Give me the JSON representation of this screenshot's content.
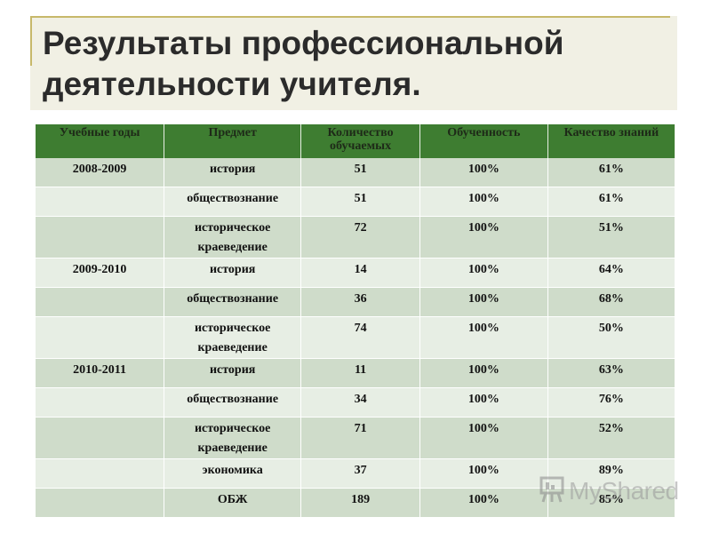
{
  "title": "Результаты профессиональной деятельности учителя.",
  "table": {
    "headers": [
      "Учебные годы",
      "Предмет",
      "Количество обучаемых",
      "Обученность",
      "Качество знаний"
    ],
    "rows": [
      {
        "year": "2008-2009",
        "subject": "история",
        "count": "51",
        "progress": "100%",
        "quality": "61%"
      },
      {
        "year": "",
        "subject": "обществознание",
        "count": "51",
        "progress": "100%",
        "quality": "61%"
      },
      {
        "year": "",
        "subject": "историческое краеведение",
        "count": "72",
        "progress": "100%",
        "quality": "51%"
      },
      {
        "year": "2009-2010",
        "subject": "история",
        "count": "14",
        "progress": "100%",
        "quality": "64%"
      },
      {
        "year": "",
        "subject": "обществознание",
        "count": "36",
        "progress": "100%",
        "quality": "68%"
      },
      {
        "year": "",
        "subject": "историческое краеведение",
        "count": "74",
        "progress": "100%",
        "quality": "50%"
      },
      {
        "year": "2010-2011",
        "subject": "история",
        "count": "11",
        "progress": "100%",
        "quality": "63%"
      },
      {
        "year": "",
        "subject": "обществознание",
        "count": "34",
        "progress": "100%",
        "quality": "76%"
      },
      {
        "year": "",
        "subject": "историческое краеведение",
        "count": "71",
        "progress": "100%",
        "quality": "52%"
      },
      {
        "year": "",
        "subject": "экономика",
        "count": "37",
        "progress": "100%",
        "quality": "89%"
      },
      {
        "year": "",
        "subject": "ОБЖ",
        "count": "189",
        "progress": "100%",
        "quality": "85%"
      }
    ]
  },
  "watermark": {
    "text": "MyShared",
    "icon": "presentation-board-icon"
  }
}
